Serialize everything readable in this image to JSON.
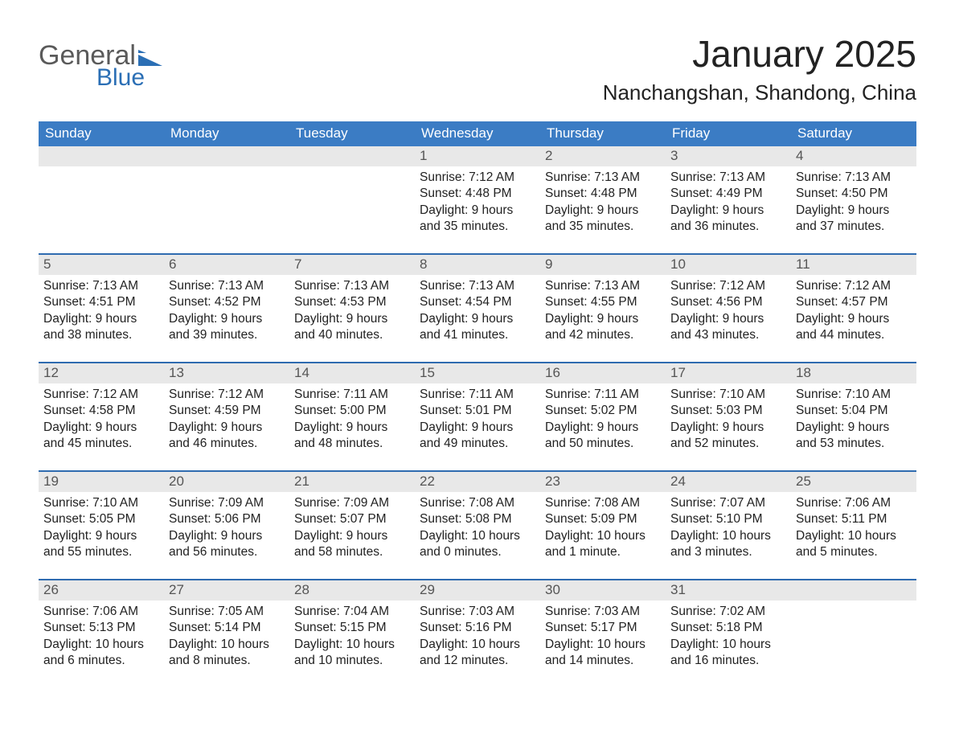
{
  "logo": {
    "word1": "General",
    "word2": "Blue"
  },
  "title": "January 2025",
  "location": "Nanchangshan, Shandong, China",
  "colors": {
    "accent": "#3b7cc4",
    "accent_border": "#2f6bb0",
    "header_gray": "#e8e8e8",
    "text": "#333333",
    "logo_gray": "#5a5a5a",
    "logo_blue": "#2b6fb5",
    "background": "#ffffff"
  },
  "typography": {
    "title_fontsize_pt": 35,
    "location_fontsize_pt": 20,
    "weekday_fontsize_pt": 13,
    "daynum_fontsize_pt": 13,
    "body_fontsize_pt": 12,
    "font_family": "Segoe UI / Helvetica Neue"
  },
  "weekdays": [
    "Sunday",
    "Monday",
    "Tuesday",
    "Wednesday",
    "Thursday",
    "Friday",
    "Saturday"
  ],
  "weeks": [
    [
      null,
      null,
      null,
      {
        "day": "1",
        "sunrise": "Sunrise: 7:12 AM",
        "sunset": "Sunset: 4:48 PM",
        "daylight": "Daylight: 9 hours and 35 minutes."
      },
      {
        "day": "2",
        "sunrise": "Sunrise: 7:13 AM",
        "sunset": "Sunset: 4:48 PM",
        "daylight": "Daylight: 9 hours and 35 minutes."
      },
      {
        "day": "3",
        "sunrise": "Sunrise: 7:13 AM",
        "sunset": "Sunset: 4:49 PM",
        "daylight": "Daylight: 9 hours and 36 minutes."
      },
      {
        "day": "4",
        "sunrise": "Sunrise: 7:13 AM",
        "sunset": "Sunset: 4:50 PM",
        "daylight": "Daylight: 9 hours and 37 minutes."
      }
    ],
    [
      {
        "day": "5",
        "sunrise": "Sunrise: 7:13 AM",
        "sunset": "Sunset: 4:51 PM",
        "daylight": "Daylight: 9 hours and 38 minutes."
      },
      {
        "day": "6",
        "sunrise": "Sunrise: 7:13 AM",
        "sunset": "Sunset: 4:52 PM",
        "daylight": "Daylight: 9 hours and 39 minutes."
      },
      {
        "day": "7",
        "sunrise": "Sunrise: 7:13 AM",
        "sunset": "Sunset: 4:53 PM",
        "daylight": "Daylight: 9 hours and 40 minutes."
      },
      {
        "day": "8",
        "sunrise": "Sunrise: 7:13 AM",
        "sunset": "Sunset: 4:54 PM",
        "daylight": "Daylight: 9 hours and 41 minutes."
      },
      {
        "day": "9",
        "sunrise": "Sunrise: 7:13 AM",
        "sunset": "Sunset: 4:55 PM",
        "daylight": "Daylight: 9 hours and 42 minutes."
      },
      {
        "day": "10",
        "sunrise": "Sunrise: 7:12 AM",
        "sunset": "Sunset: 4:56 PM",
        "daylight": "Daylight: 9 hours and 43 minutes."
      },
      {
        "day": "11",
        "sunrise": "Sunrise: 7:12 AM",
        "sunset": "Sunset: 4:57 PM",
        "daylight": "Daylight: 9 hours and 44 minutes."
      }
    ],
    [
      {
        "day": "12",
        "sunrise": "Sunrise: 7:12 AM",
        "sunset": "Sunset: 4:58 PM",
        "daylight": "Daylight: 9 hours and 45 minutes."
      },
      {
        "day": "13",
        "sunrise": "Sunrise: 7:12 AM",
        "sunset": "Sunset: 4:59 PM",
        "daylight": "Daylight: 9 hours and 46 minutes."
      },
      {
        "day": "14",
        "sunrise": "Sunrise: 7:11 AM",
        "sunset": "Sunset: 5:00 PM",
        "daylight": "Daylight: 9 hours and 48 minutes."
      },
      {
        "day": "15",
        "sunrise": "Sunrise: 7:11 AM",
        "sunset": "Sunset: 5:01 PM",
        "daylight": "Daylight: 9 hours and 49 minutes."
      },
      {
        "day": "16",
        "sunrise": "Sunrise: 7:11 AM",
        "sunset": "Sunset: 5:02 PM",
        "daylight": "Daylight: 9 hours and 50 minutes."
      },
      {
        "day": "17",
        "sunrise": "Sunrise: 7:10 AM",
        "sunset": "Sunset: 5:03 PM",
        "daylight": "Daylight: 9 hours and 52 minutes."
      },
      {
        "day": "18",
        "sunrise": "Sunrise: 7:10 AM",
        "sunset": "Sunset: 5:04 PM",
        "daylight": "Daylight: 9 hours and 53 minutes."
      }
    ],
    [
      {
        "day": "19",
        "sunrise": "Sunrise: 7:10 AM",
        "sunset": "Sunset: 5:05 PM",
        "daylight": "Daylight: 9 hours and 55 minutes."
      },
      {
        "day": "20",
        "sunrise": "Sunrise: 7:09 AM",
        "sunset": "Sunset: 5:06 PM",
        "daylight": "Daylight: 9 hours and 56 minutes."
      },
      {
        "day": "21",
        "sunrise": "Sunrise: 7:09 AM",
        "sunset": "Sunset: 5:07 PM",
        "daylight": "Daylight: 9 hours and 58 minutes."
      },
      {
        "day": "22",
        "sunrise": "Sunrise: 7:08 AM",
        "sunset": "Sunset: 5:08 PM",
        "daylight": "Daylight: 10 hours and 0 minutes."
      },
      {
        "day": "23",
        "sunrise": "Sunrise: 7:08 AM",
        "sunset": "Sunset: 5:09 PM",
        "daylight": "Daylight: 10 hours and 1 minute."
      },
      {
        "day": "24",
        "sunrise": "Sunrise: 7:07 AM",
        "sunset": "Sunset: 5:10 PM",
        "daylight": "Daylight: 10 hours and 3 minutes."
      },
      {
        "day": "25",
        "sunrise": "Sunrise: 7:06 AM",
        "sunset": "Sunset: 5:11 PM",
        "daylight": "Daylight: 10 hours and 5 minutes."
      }
    ],
    [
      {
        "day": "26",
        "sunrise": "Sunrise: 7:06 AM",
        "sunset": "Sunset: 5:13 PM",
        "daylight": "Daylight: 10 hours and 6 minutes."
      },
      {
        "day": "27",
        "sunrise": "Sunrise: 7:05 AM",
        "sunset": "Sunset: 5:14 PM",
        "daylight": "Daylight: 10 hours and 8 minutes."
      },
      {
        "day": "28",
        "sunrise": "Sunrise: 7:04 AM",
        "sunset": "Sunset: 5:15 PM",
        "daylight": "Daylight: 10 hours and 10 minutes."
      },
      {
        "day": "29",
        "sunrise": "Sunrise: 7:03 AM",
        "sunset": "Sunset: 5:16 PM",
        "daylight": "Daylight: 10 hours and 12 minutes."
      },
      {
        "day": "30",
        "sunrise": "Sunrise: 7:03 AM",
        "sunset": "Sunset: 5:17 PM",
        "daylight": "Daylight: 10 hours and 14 minutes."
      },
      {
        "day": "31",
        "sunrise": "Sunrise: 7:02 AM",
        "sunset": "Sunset: 5:18 PM",
        "daylight": "Daylight: 10 hours and 16 minutes."
      },
      null
    ]
  ]
}
